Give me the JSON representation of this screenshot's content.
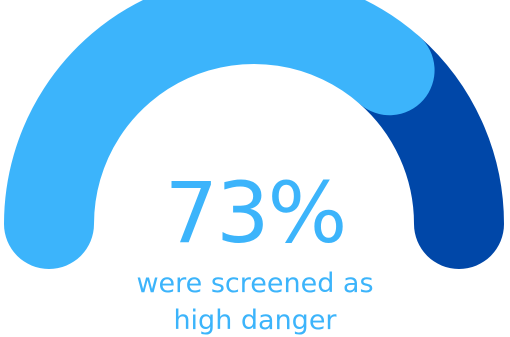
{
  "chart_data": {
    "type": "gauge",
    "value_percent": 73,
    "value_label": "73%",
    "caption_line1": "were screened as",
    "caption_line2": "high danger",
    "colors": {
      "filled": "#3cb4fb",
      "remainder": "#0047a8",
      "text": "#3cb4fb"
    }
  }
}
